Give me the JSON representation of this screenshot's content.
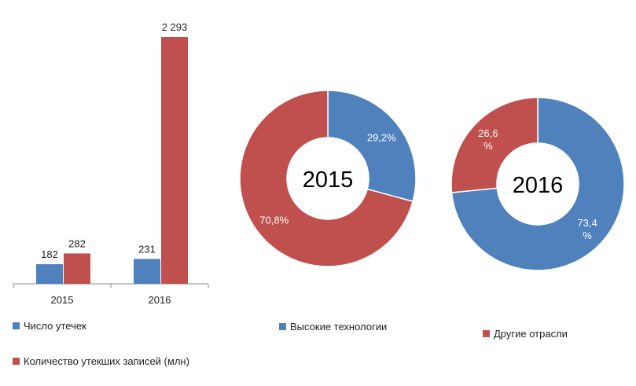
{
  "colors": {
    "blue": "#4f81bd",
    "red": "#c0504d"
  },
  "chart_data": [
    {
      "type": "bar",
      "categories": [
        "2015",
        "2016"
      ],
      "series": [
        {
          "name": "Число утечек",
          "values": [
            182,
            231
          ],
          "labels": [
            "182",
            "231"
          ]
        },
        {
          "name": "Количество утекших записей (млн)",
          "values": [
            282,
            2293
          ],
          "labels": [
            "282",
            "2 293"
          ]
        }
      ],
      "ylim": [
        0,
        2293
      ],
      "grid": false,
      "legend": "bottom"
    },
    {
      "type": "pie",
      "donut": true,
      "title": "2015",
      "slices": [
        {
          "name": "Высокие технологии",
          "value": 29.2,
          "label": "29,2%"
        },
        {
          "name": "Другие отрасли",
          "value": 70.8,
          "label": "70,8%"
        }
      ]
    },
    {
      "type": "pie",
      "donut": true,
      "title": "2016",
      "slices": [
        {
          "name": "Высокие технологии",
          "value": 73.4,
          "label": "73,4 %"
        },
        {
          "name": "Другие отрасли",
          "value": 26.6,
          "label": "26,6 %"
        }
      ]
    }
  ],
  "legend": {
    "bar": [
      "Число утечек",
      "Количество утекших записей (млн)"
    ],
    "pie": [
      "Высокие технологии",
      "Другие отрасли"
    ]
  }
}
